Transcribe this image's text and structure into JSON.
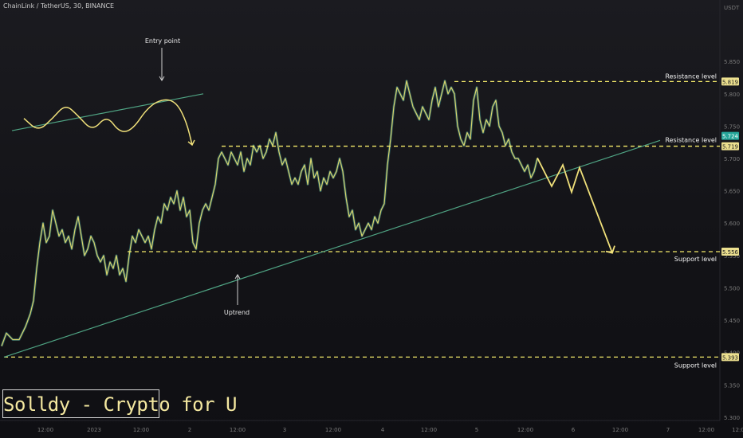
{
  "header": {
    "symbol": "ChainLink / TetherUS, 30, BINANCE",
    "currency": "USDT"
  },
  "watermark": "Solldy - Crypto for U",
  "chart_data": {
    "type": "line",
    "ylim": [
      5.295,
      5.945
    ],
    "y_ticks": [
      5.3,
      5.35,
      5.4,
      5.45,
      5.5,
      5.55,
      5.6,
      5.65,
      5.7,
      5.75,
      5.8,
      5.85
    ],
    "y_tick_labels": [
      "5.300",
      "5.350",
      "5.400",
      "5.450",
      "5.500",
      "5.550",
      "5.600",
      "5.650",
      "5.700",
      "5.750",
      "5.800",
      "5.850"
    ],
    "x_tick_labels": [
      "12:00",
      "2023",
      "12:00",
      "2",
      "12:00",
      "3",
      "12:00",
      "4",
      "12:00",
      "5",
      "12:00",
      "6",
      "12:00",
      "7",
      "12:00",
      "12:0"
    ],
    "x_ticks": [
      57,
      118,
      177,
      238,
      298,
      357,
      418,
      480,
      538,
      598,
      659,
      719,
      778,
      838,
      886,
      926
    ],
    "price_close": [
      [
        2,
        5.41
      ],
      [
        8,
        5.43
      ],
      [
        16,
        5.42
      ],
      [
        24,
        5.42
      ],
      [
        32,
        5.44
      ],
      [
        38,
        5.46
      ],
      [
        42,
        5.48
      ],
      [
        46,
        5.53
      ],
      [
        50,
        5.57
      ],
      [
        54,
        5.6
      ],
      [
        58,
        5.57
      ],
      [
        62,
        5.58
      ],
      [
        66,
        5.62
      ],
      [
        70,
        5.6
      ],
      [
        74,
        5.58
      ],
      [
        78,
        5.59
      ],
      [
        82,
        5.57
      ],
      [
        86,
        5.58
      ],
      [
        90,
        5.56
      ],
      [
        94,
        5.59
      ],
      [
        98,
        5.61
      ],
      [
        102,
        5.58
      ],
      [
        106,
        5.55
      ],
      [
        110,
        5.56
      ],
      [
        114,
        5.58
      ],
      [
        118,
        5.57
      ],
      [
        122,
        5.55
      ],
      [
        126,
        5.54
      ],
      [
        130,
        5.55
      ],
      [
        134,
        5.52
      ],
      [
        138,
        5.54
      ],
      [
        142,
        5.53
      ],
      [
        146,
        5.55
      ],
      [
        150,
        5.52
      ],
      [
        154,
        5.53
      ],
      [
        158,
        5.51
      ],
      [
        162,
        5.55
      ],
      [
        166,
        5.58
      ],
      [
        170,
        5.57
      ],
      [
        174,
        5.59
      ],
      [
        178,
        5.58
      ],
      [
        182,
        5.57
      ],
      [
        186,
        5.58
      ],
      [
        190,
        5.56
      ],
      [
        194,
        5.59
      ],
      [
        198,
        5.61
      ],
      [
        202,
        5.6
      ],
      [
        206,
        5.63
      ],
      [
        210,
        5.62
      ],
      [
        214,
        5.64
      ],
      [
        218,
        5.63
      ],
      [
        222,
        5.65
      ],
      [
        226,
        5.62
      ],
      [
        230,
        5.64
      ],
      [
        234,
        5.61
      ],
      [
        238,
        5.62
      ],
      [
        242,
        5.57
      ],
      [
        246,
        5.56
      ],
      [
        250,
        5.6
      ],
      [
        254,
        5.62
      ],
      [
        258,
        5.63
      ],
      [
        262,
        5.62
      ],
      [
        266,
        5.64
      ],
      [
        270,
        5.66
      ],
      [
        274,
        5.7
      ],
      [
        278,
        5.71
      ],
      [
        282,
        5.7
      ],
      [
        286,
        5.69
      ],
      [
        290,
        5.71
      ],
      [
        294,
        5.7
      ],
      [
        298,
        5.69
      ],
      [
        302,
        5.71
      ],
      [
        306,
        5.68
      ],
      [
        310,
        5.7
      ],
      [
        314,
        5.69
      ],
      [
        318,
        5.72
      ],
      [
        322,
        5.71
      ],
      [
        326,
        5.72
      ],
      [
        330,
        5.7
      ],
      [
        334,
        5.71
      ],
      [
        338,
        5.73
      ],
      [
        342,
        5.72
      ],
      [
        346,
        5.74
      ],
      [
        350,
        5.71
      ],
      [
        354,
        5.69
      ],
      [
        358,
        5.7
      ],
      [
        362,
        5.68
      ],
      [
        366,
        5.66
      ],
      [
        370,
        5.67
      ],
      [
        374,
        5.66
      ],
      [
        378,
        5.68
      ],
      [
        382,
        5.69
      ],
      [
        386,
        5.66
      ],
      [
        390,
        5.7
      ],
      [
        394,
        5.67
      ],
      [
        398,
        5.68
      ],
      [
        402,
        5.65
      ],
      [
        406,
        5.67
      ],
      [
        410,
        5.66
      ],
      [
        414,
        5.68
      ],
      [
        418,
        5.67
      ],
      [
        422,
        5.68
      ],
      [
        426,
        5.7
      ],
      [
        430,
        5.68
      ],
      [
        434,
        5.64
      ],
      [
        438,
        5.61
      ],
      [
        442,
        5.62
      ],
      [
        446,
        5.59
      ],
      [
        450,
        5.6
      ],
      [
        454,
        5.58
      ],
      [
        458,
        5.59
      ],
      [
        462,
        5.6
      ],
      [
        466,
        5.59
      ],
      [
        470,
        5.61
      ],
      [
        474,
        5.6
      ],
      [
        478,
        5.62
      ],
      [
        482,
        5.63
      ],
      [
        486,
        5.69
      ],
      [
        490,
        5.73
      ],
      [
        494,
        5.78
      ],
      [
        498,
        5.81
      ],
      [
        502,
        5.8
      ],
      [
        506,
        5.79
      ],
      [
        510,
        5.82
      ],
      [
        514,
        5.8
      ],
      [
        518,
        5.78
      ],
      [
        522,
        5.77
      ],
      [
        526,
        5.76
      ],
      [
        530,
        5.78
      ],
      [
        534,
        5.77
      ],
      [
        538,
        5.76
      ],
      [
        542,
        5.79
      ],
      [
        546,
        5.81
      ],
      [
        550,
        5.78
      ],
      [
        554,
        5.8
      ],
      [
        558,
        5.82
      ],
      [
        562,
        5.8
      ],
      [
        566,
        5.81
      ],
      [
        570,
        5.8
      ],
      [
        574,
        5.75
      ],
      [
        578,
        5.73
      ],
      [
        582,
        5.72
      ],
      [
        586,
        5.74
      ],
      [
        590,
        5.73
      ],
      [
        594,
        5.79
      ],
      [
        598,
        5.81
      ],
      [
        602,
        5.76
      ],
      [
        606,
        5.74
      ],
      [
        610,
        5.76
      ],
      [
        614,
        5.75
      ],
      [
        618,
        5.78
      ],
      [
        622,
        5.79
      ],
      [
        626,
        5.75
      ],
      [
        630,
        5.74
      ],
      [
        634,
        5.72
      ],
      [
        638,
        5.73
      ],
      [
        642,
        5.71
      ],
      [
        646,
        5.7
      ],
      [
        650,
        5.7
      ],
      [
        654,
        5.69
      ],
      [
        658,
        5.68
      ],
      [
        662,
        5.69
      ],
      [
        666,
        5.67
      ],
      [
        670,
        5.68
      ],
      [
        674,
        5.7
      ]
    ],
    "lines": {
      "resistance_1": 5.819,
      "resistance_2": 5.719,
      "support_1": 5.556,
      "support_2": 5.393,
      "uptrend": {
        "from": [
          5,
          5.393
        ],
        "to": [
          828,
          5.728
        ]
      },
      "upper_trend": {
        "from": [
          15,
          5.743
        ],
        "to": [
          255,
          5.8
        ]
      }
    },
    "price_labels": {
      "resistance_1": "5.819",
      "current": "5.724",
      "resistance_2": "5.719",
      "support_1": "5.556",
      "support_2": "5.393"
    },
    "annotations": {
      "resistance_1": "Resistance level",
      "resistance_2": "Resistance level",
      "support_1": "Support level",
      "support_2": "Support level",
      "entry": "Entry point",
      "uptrend": "Uptrend"
    },
    "projection_path": [
      [
        674,
        5.701
      ],
      [
        692,
        5.657
      ],
      [
        706,
        5.69
      ],
      [
        717,
        5.648
      ],
      [
        727,
        5.686
      ],
      [
        768,
        5.554
      ]
    ],
    "entry_wave": [
      [
        30,
        5.762
      ],
      [
        48,
        5.742
      ],
      [
        66,
        5.762
      ],
      [
        82,
        5.784
      ],
      [
        98,
        5.766
      ],
      [
        116,
        5.742
      ],
      [
        134,
        5.767
      ],
      [
        150,
        5.74
      ],
      [
        166,
        5.744
      ],
      [
        186,
        5.78
      ],
      [
        206,
        5.793
      ],
      [
        222,
        5.786
      ],
      [
        234,
        5.756
      ],
      [
        241,
        5.721
      ]
    ],
    "colors": {
      "background": "#131318",
      "price_line": "#d9d36b",
      "price_line_dark": "#3a8c8a",
      "dashed": "#f3e96a",
      "trendline": "#4fa383",
      "projection": "#f0e07a",
      "label_box": "#ece08f",
      "current_box": "#26a69a",
      "axis_text": "#7a7a7a"
    }
  }
}
